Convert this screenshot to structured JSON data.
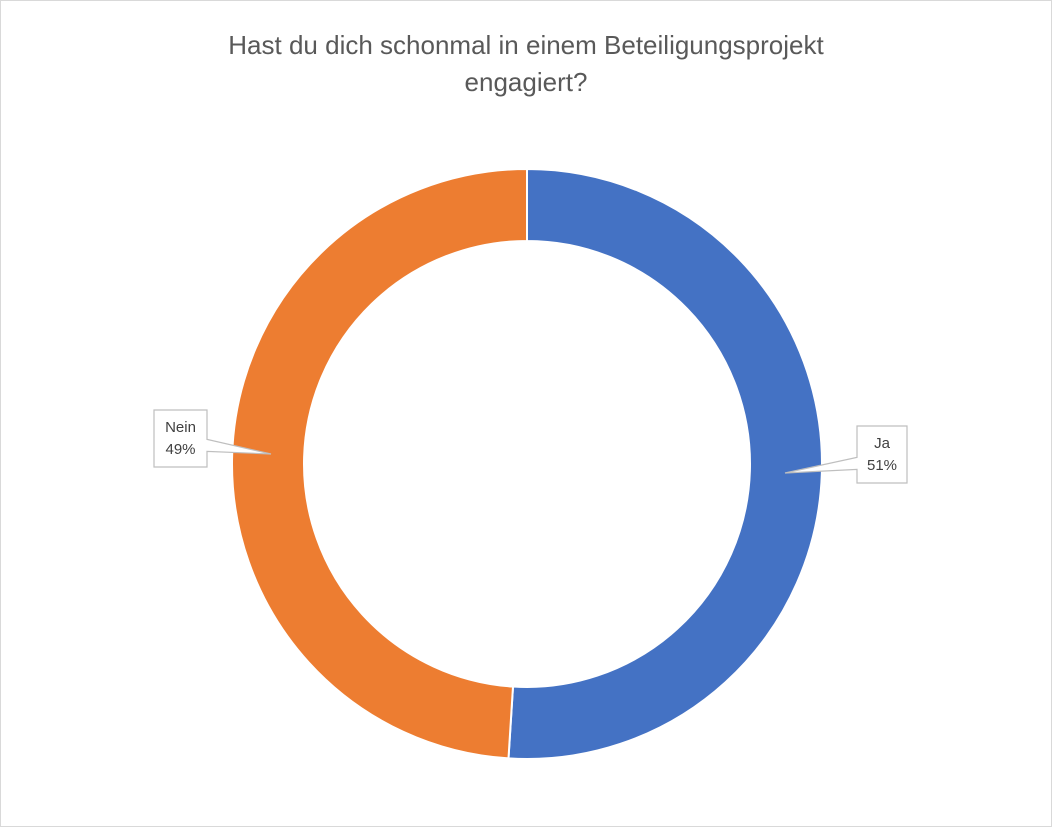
{
  "chart_data": {
    "type": "pie",
    "subtype": "doughnut",
    "title_lines": [
      "Hast du dich schonmal in einem Beteiligungsprojekt",
      "engagiert?"
    ],
    "categories": [
      "Ja",
      "Nein"
    ],
    "values": [
      51,
      49
    ],
    "value_labels": [
      "51%",
      "49%"
    ],
    "colors": [
      "#4472C4",
      "#ED7D31"
    ],
    "legend": "none",
    "data_labels": "callout"
  }
}
